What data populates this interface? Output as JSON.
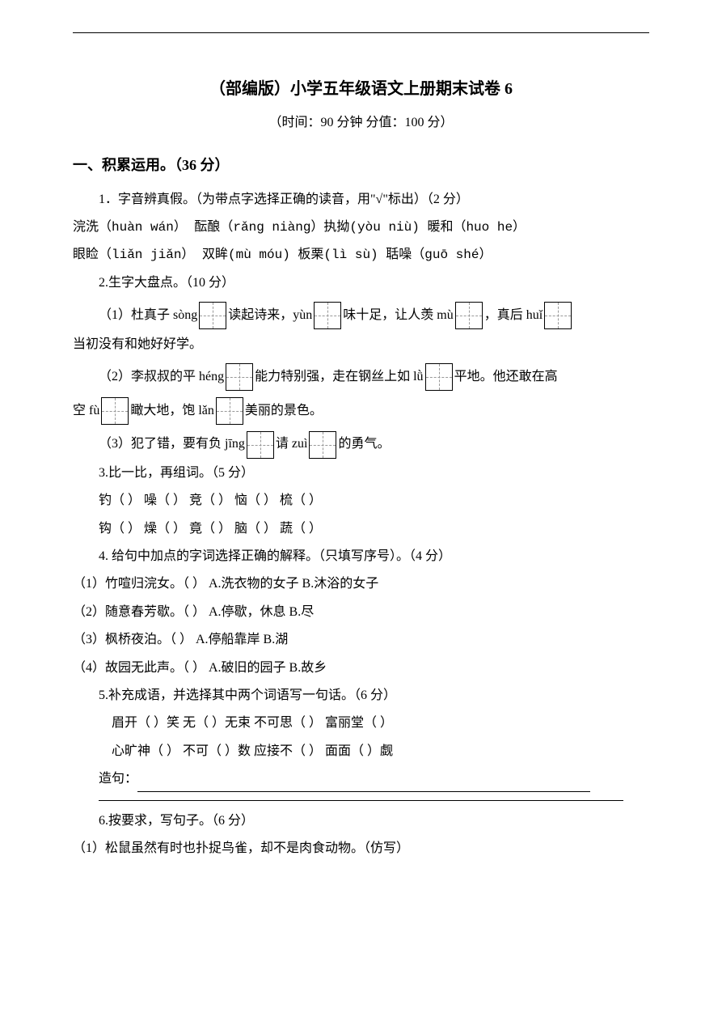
{
  "title": "（部编版）小学五年级语文上册期末试卷 6",
  "subtitle": "（时间：90 分钟  分值：100 分）",
  "section1": {
    "header": "一、积累运用。（36 分）",
    "q1": {
      "prompt": "1．字音辨真假。（为带点字选择正确的读音，用\"√\"标出）（2 分）",
      "line1": "浣洗（huàn wán）  酝酿（rǎng  niàng）执拗(yòu   niù) 暖和（huo   he）",
      "line2": "眼睑（liǎn  jiǎn）  双眸(mù      móu)  板栗(lì    sù) 聒噪（guō   shé）"
    },
    "q2": {
      "prompt": "2.生字大盘点。（10 分）",
      "p1a": "（1）杜真子 sòng",
      "p1b": "读起诗来，yùn",
      "p1c": "味十足，让人羡 mù",
      "p1d": "，真后 huǐ",
      "p1e": "当初没有和她好好学。",
      "p2a": "（2）李叔叔的平 héng",
      "p2b": "能力特别强，走在钢丝上如 lǜ",
      "p2c": "平地。他还敢在高",
      "p2d": "空 fù",
      "p2e": "瞰大地，饱 lǎn",
      "p2f": "美丽的景色。",
      "p3a": "（3）犯了错，要有负 jīng",
      "p3b": "请 zuì",
      "p3c": "的勇气。"
    },
    "q3": {
      "prompt": "3.比一比，再组词。（5 分）",
      "row1": "钓（      ）  噪（      ）  竞（      ）  恼（      ）   梳（      ）",
      "row2": "钩（      ）  燥（      ）  竟（      ）  脑（      ）   蔬（      ）"
    },
    "q4": {
      "prompt": "4. 给句中加点的字词选择正确的解释。（只填写序号）。（4 分）",
      "i1": "（1）竹喧归浣女。（      ）   A.洗衣物的女子   B.沐浴的女子",
      "i2": "（2）随意春芳歇。（      ）   A.停歇，休息     B.尽",
      "i3": "（3）枫桥夜泊。（      ）   A.停船靠岸      B.湖",
      "i4": "（4）故园无此声。（      ）   A.破旧的园子     B.故乡"
    },
    "q5": {
      "prompt": "5.补充成语，并选择其中两个词语写一句话。（6 分）",
      "row1": "眉开（    ）笑  无（    ）无束  不可思（    ）    富丽堂（    ）",
      "row2": "心旷神（    ）  不可（    ）数  应接不（    ）    面面（    ）觑",
      "make": "造句："
    },
    "q6": {
      "prompt": "6.按要求，写句子。（6 分）",
      "i1": "（1）松鼠虽然有时也扑捉鸟雀，却不是肉食动物。（仿写）"
    }
  }
}
